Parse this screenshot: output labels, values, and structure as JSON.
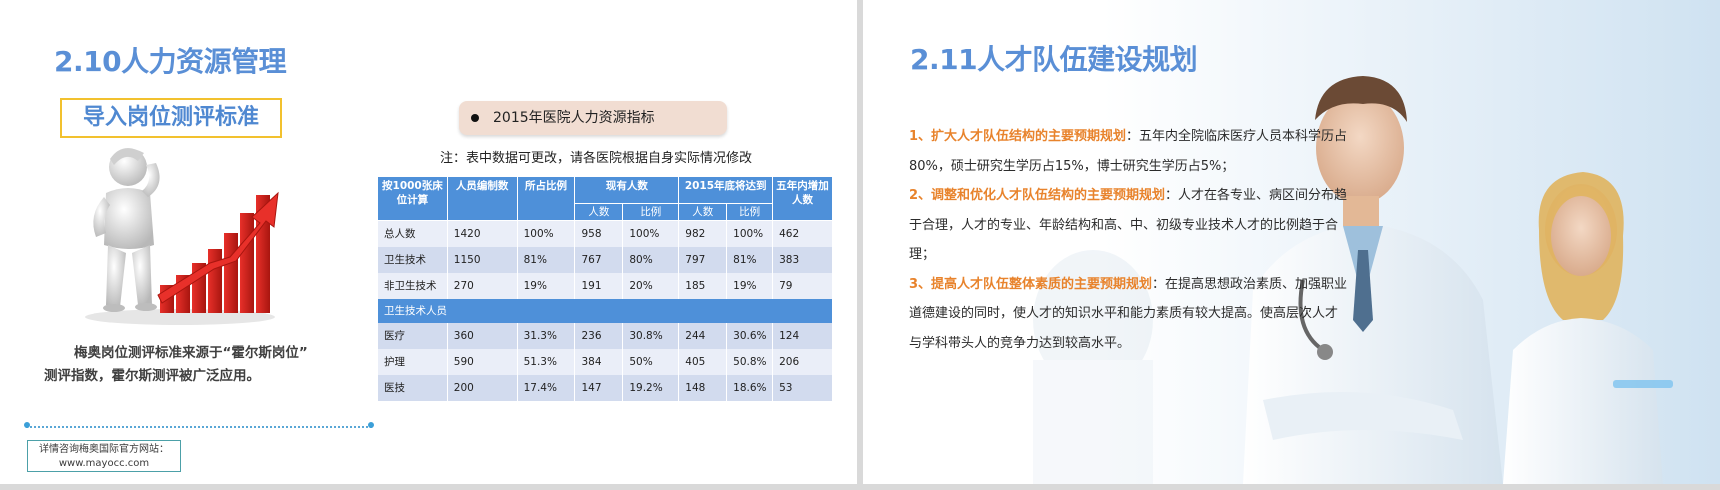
{
  "left_slide": {
    "title": "2.10人力资源管理",
    "subtitle": "导入岗位测评标准",
    "figure_icon": "thinking-person-rising-bar-chart",
    "description_line1": "梅奥岗位测评标准来源于“霍尔斯岗位”",
    "description_line2": "测评指数，霍尔斯测评被广泛应用。",
    "contact_line1": "详情咨询梅奥国际官方网站：",
    "contact_line2": "www.mayocc.com",
    "pill_label": "2015年医院人力资源指标",
    "note": "注：表中数据可更改，请各医院根据自身实际情况修改",
    "table": {
      "col1": "按1000张床位计算",
      "col2": "人员编制数",
      "col3": "所占比例",
      "col4": "现有人数",
      "col5": "2015年底将达到",
      "col6": "五年内增加人数",
      "sub_people": "人数",
      "sub_ratio": "比例",
      "rows_top": [
        {
          "name": "总人数",
          "staff": "1420",
          "pct": "100%",
          "now_n": "958",
          "now_r": "100%",
          "t_n": "982",
          "t_r": "100%",
          "add": "462"
        },
        {
          "name": "卫生技术",
          "staff": "1150",
          "pct": "81%",
          "now_n": "767",
          "now_r": "80%",
          "t_n": "797",
          "t_r": "81%",
          "add": "383"
        },
        {
          "name": "非卫生技术",
          "staff": "270",
          "pct": "19%",
          "now_n": "191",
          "now_r": "20%",
          "t_n": "185",
          "t_r": "19%",
          "add": "79"
        }
      ],
      "group_label": "卫生技术人员",
      "rows_bottom": [
        {
          "name": "医疗",
          "staff": "360",
          "pct": "31.3%",
          "now_n": "236",
          "now_r": "30.8%",
          "t_n": "244",
          "t_r": "30.6%",
          "add": "124"
        },
        {
          "name": "护理",
          "staff": "590",
          "pct": "51.3%",
          "now_n": "384",
          "now_r": "50%",
          "t_n": "405",
          "t_r": "50.8%",
          "add": "206"
        },
        {
          "name": "医技",
          "staff": "200",
          "pct": "17.4%",
          "now_n": "147",
          "now_r": "19.2%",
          "t_n": "148",
          "t_r": "18.6%",
          "add": "53"
        }
      ]
    },
    "colors": {
      "title": "#5a8fd6",
      "table_header": "#4e90d9",
      "subtitle_border": "#f2c12e"
    }
  },
  "right_slide": {
    "title": "2.11人才队伍建设规划",
    "background_icon": "doctors-photo",
    "p1_head": "1、扩大人才队伍结构的主要预期规划",
    "p1_body": "：五年内全院临床医疗人员本科学历占80%，硕士研究生学历占15%，博士研究生学历占5%；",
    "p2_head": "2、调整和优化人才队伍结构的主要预期规划",
    "p2_body": "：人才在各专业、病区间分布趋于合理，人才的专业、年龄结构和高、中、初级专业技术人才的比例趋于合理；",
    "p3_head": "3、提高人才队伍整体素质的主要预期规划",
    "p3_body": "：在提高思想政治素质、加强职业道德建设的同时，使人才的知识水平和能力素质有较大提高。使高层次人才与学科带头人的竞争力达到较高水平。",
    "colors": {
      "highlight": "#e8832c"
    }
  }
}
